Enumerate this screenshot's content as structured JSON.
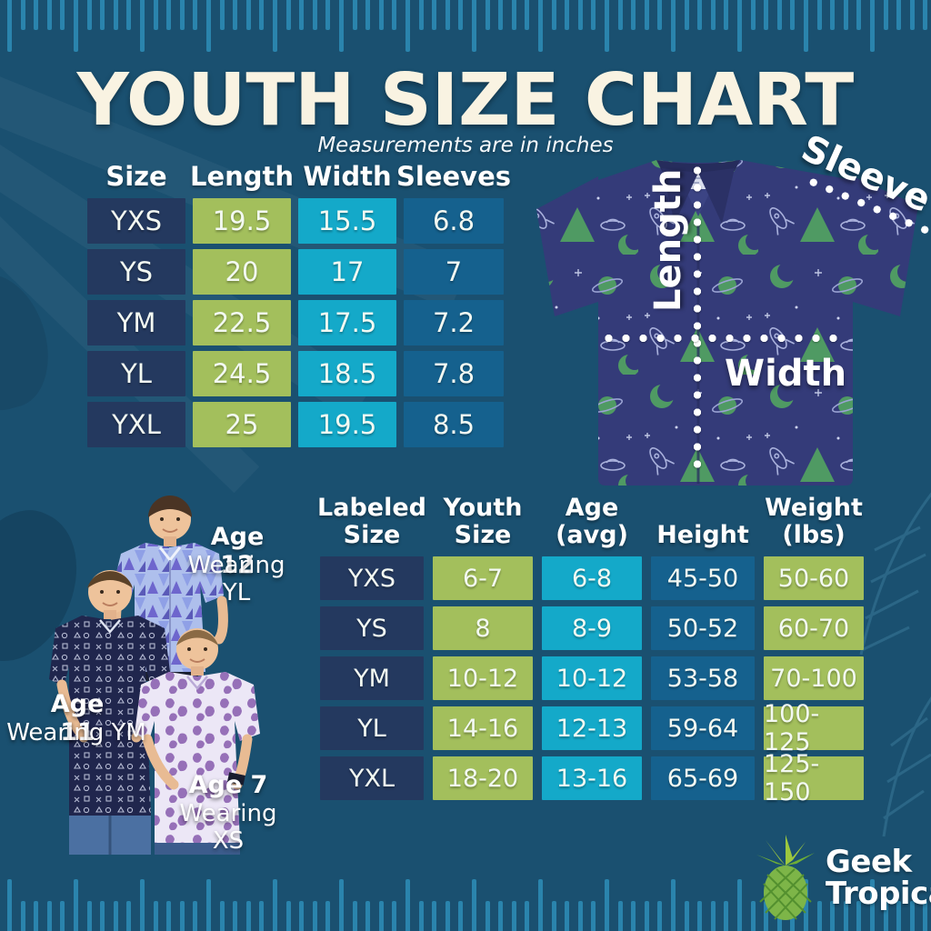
{
  "title": "YOUTH SIZE CHART",
  "subtitle": "Measurements are in inches",
  "chart_data": [
    {
      "type": "table",
      "name": "youth-measurements",
      "units": "inches",
      "columns": [
        "Size",
        "Length",
        "Width",
        "Sleeves"
      ],
      "rows": [
        [
          "YXS",
          "19.5",
          "15.5",
          "6.8"
        ],
        [
          "YS",
          "20",
          "17",
          "7"
        ],
        [
          "YM",
          "22.5",
          "17.5",
          "7.2"
        ],
        [
          "YL",
          "24.5",
          "18.5",
          "7.8"
        ],
        [
          "YXL",
          "25",
          "19.5",
          "8.5"
        ]
      ]
    },
    {
      "type": "table",
      "name": "fit-guide",
      "columns": [
        "Labeled Size",
        "Youth Size",
        "Age (avg)",
        "Height",
        "Weight (lbs)"
      ],
      "header_lines": [
        [
          "Labeled",
          "Size"
        ],
        [
          "Youth",
          "Size"
        ],
        [
          "Age",
          "(avg)"
        ],
        [
          "Height"
        ],
        [
          "Weight",
          "(lbs)"
        ]
      ],
      "rows": [
        [
          "YXS",
          "6-7",
          "6-8",
          "45-50",
          "50-60"
        ],
        [
          "YS",
          "8",
          "8-9",
          "50-52",
          "60-70"
        ],
        [
          "YM",
          "10-12",
          "10-12",
          "53-58",
          "70-100"
        ],
        [
          "YL",
          "14-16",
          "12-13",
          "59-64",
          "100-125"
        ],
        [
          "YXL",
          "18-20",
          "13-16",
          "65-69",
          "125-150"
        ]
      ]
    }
  ],
  "shirt_diagram": {
    "length_label": "Length",
    "width_label": "Width",
    "sleeve_label": "Sleeve"
  },
  "models": [
    {
      "age": "Age 12",
      "wearing": "Wearing YL"
    },
    {
      "age": "Age 11",
      "wearing": "Wearing YM"
    },
    {
      "age": "Age 7",
      "wearing": "Wearing XS"
    }
  ],
  "logo": {
    "word1": "Geek",
    "word2": "Tropical"
  },
  "colors": {
    "background": "#1a5070",
    "ruler_tick": "#2a84ad",
    "cell_navy": "#24395f",
    "cell_green": "#a3bf5c",
    "cell_cyan": "#14a9c9",
    "cell_blue": "#15618e",
    "title_cream": "#f9f3e2",
    "text_white": "#ffffff",
    "shirt_navy": "#343b79",
    "shirt_pattern_green": "#4f9a63"
  }
}
